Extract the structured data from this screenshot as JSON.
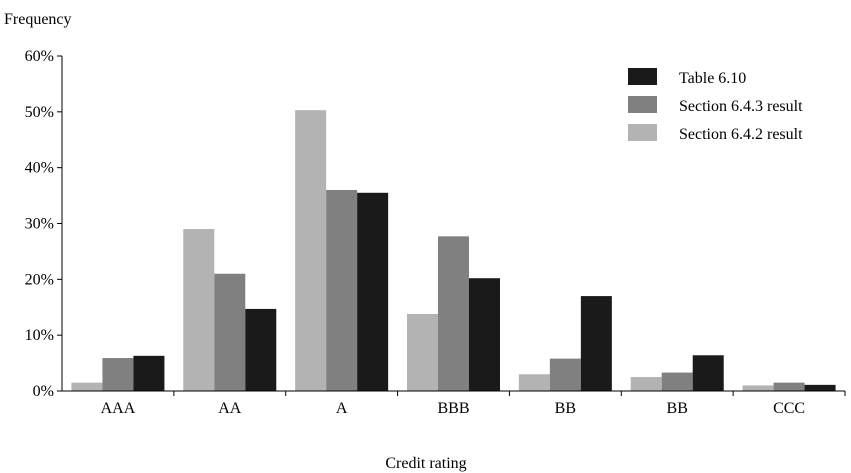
{
  "chart_data": {
    "type": "bar",
    "ylabel": "Frequency",
    "xlabel": "Credit rating",
    "categories": [
      "AAA",
      "AA",
      "A",
      "BBB",
      "BB",
      "BB",
      "CCC"
    ],
    "yticks": [
      "0%",
      "10%",
      "20%",
      "30%",
      "40%",
      "50%",
      "60%"
    ],
    "ylim": [
      0,
      60
    ],
    "y_unit": "%",
    "grid": false,
    "legend_position": "top-right",
    "series": [
      {
        "name": "Section 6.4.2 result",
        "color": "#b3b3b3",
        "values": [
          1.5,
          29,
          50.3,
          13.8,
          3,
          2.5,
          1
        ]
      },
      {
        "name": "Section 6.4.3 result",
        "color": "#808080",
        "values": [
          5.9,
          21,
          36,
          27.7,
          5.8,
          3.3,
          1.5
        ]
      },
      {
        "name": "Table 6.10",
        "color": "#1a1a1a",
        "values": [
          6.3,
          14.7,
          35.5,
          20.2,
          17,
          6.4,
          1.1
        ]
      }
    ],
    "legend_order": [
      "Table 6.10",
      "Section 6.4.3 result",
      "Section 6.4.2 result"
    ]
  }
}
